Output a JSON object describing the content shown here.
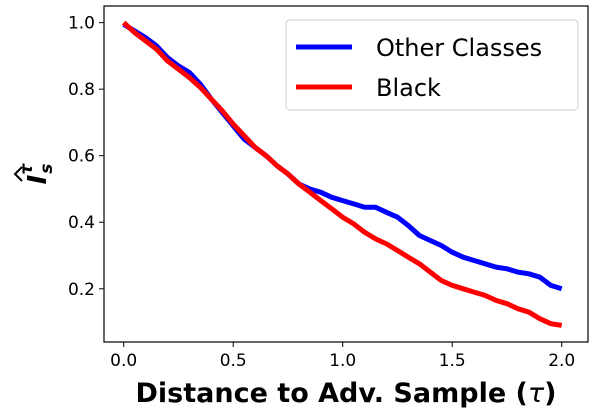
{
  "chart_data": {
    "type": "line",
    "xlabel_text": "Distance to Adv. Sample (",
    "xlabel_tau": "τ",
    "xlabel_close": ")",
    "ylabel": {
      "base": "I",
      "superscript": "τ",
      "subscript": "s"
    },
    "xlim": [
      -0.09,
      2.12
    ],
    "ylim": [
      0.04,
      1.05
    ],
    "x_ticks": [
      0.0,
      0.5,
      1.0,
      1.5,
      2.0
    ],
    "x_tick_labels": [
      "0.0",
      "0.5",
      "1.0",
      "1.5",
      "2.0"
    ],
    "y_ticks": [
      0.2,
      0.4,
      0.6,
      0.8,
      1.0
    ],
    "y_tick_labels": [
      "0.2",
      "0.4",
      "0.6",
      "0.8",
      "1.0"
    ],
    "grid": false,
    "legend_position": "top-right",
    "series": [
      {
        "name": "Other Classes",
        "color": "#0000ff",
        "points": [
          [
            0.0,
            0.995
          ],
          [
            0.05,
            0.975
          ],
          [
            0.1,
            0.955
          ],
          [
            0.15,
            0.93
          ],
          [
            0.2,
            0.895
          ],
          [
            0.25,
            0.87
          ],
          [
            0.3,
            0.85
          ],
          [
            0.35,
            0.815
          ],
          [
            0.4,
            0.77
          ],
          [
            0.45,
            0.73
          ],
          [
            0.5,
            0.69
          ],
          [
            0.55,
            0.65
          ],
          [
            0.6,
            0.625
          ],
          [
            0.65,
            0.6
          ],
          [
            0.7,
            0.57
          ],
          [
            0.75,
            0.545
          ],
          [
            0.8,
            0.515
          ],
          [
            0.85,
            0.5
          ],
          [
            0.9,
            0.49
          ],
          [
            0.95,
            0.475
          ],
          [
            1.0,
            0.465
          ],
          [
            1.05,
            0.455
          ],
          [
            1.1,
            0.445
          ],
          [
            1.15,
            0.445
          ],
          [
            1.2,
            0.43
          ],
          [
            1.25,
            0.415
          ],
          [
            1.3,
            0.39
          ],
          [
            1.35,
            0.36
          ],
          [
            1.4,
            0.345
          ],
          [
            1.45,
            0.33
          ],
          [
            1.5,
            0.31
          ],
          [
            1.55,
            0.295
          ],
          [
            1.6,
            0.285
          ],
          [
            1.65,
            0.275
          ],
          [
            1.7,
            0.265
          ],
          [
            1.75,
            0.26
          ],
          [
            1.8,
            0.25
          ],
          [
            1.85,
            0.245
          ],
          [
            1.9,
            0.235
          ],
          [
            1.95,
            0.21
          ],
          [
            2.0,
            0.2
          ]
        ]
      },
      {
        "name": "Black",
        "color": "#ff0000",
        "points": [
          [
            0.0,
            1.0
          ],
          [
            0.05,
            0.97
          ],
          [
            0.1,
            0.945
          ],
          [
            0.15,
            0.92
          ],
          [
            0.2,
            0.885
          ],
          [
            0.25,
            0.86
          ],
          [
            0.3,
            0.835
          ],
          [
            0.35,
            0.805
          ],
          [
            0.4,
            0.77
          ],
          [
            0.45,
            0.735
          ],
          [
            0.5,
            0.695
          ],
          [
            0.55,
            0.66
          ],
          [
            0.6,
            0.625
          ],
          [
            0.65,
            0.6
          ],
          [
            0.7,
            0.57
          ],
          [
            0.75,
            0.545
          ],
          [
            0.8,
            0.515
          ],
          [
            0.85,
            0.49
          ],
          [
            0.9,
            0.465
          ],
          [
            0.95,
            0.44
          ],
          [
            1.0,
            0.415
          ],
          [
            1.05,
            0.395
          ],
          [
            1.1,
            0.37
          ],
          [
            1.15,
            0.35
          ],
          [
            1.2,
            0.335
          ],
          [
            1.25,
            0.315
          ],
          [
            1.3,
            0.295
          ],
          [
            1.35,
            0.275
          ],
          [
            1.4,
            0.25
          ],
          [
            1.45,
            0.225
          ],
          [
            1.5,
            0.21
          ],
          [
            1.55,
            0.2
          ],
          [
            1.6,
            0.19
          ],
          [
            1.65,
            0.18
          ],
          [
            1.7,
            0.165
          ],
          [
            1.75,
            0.155
          ],
          [
            1.8,
            0.14
          ],
          [
            1.85,
            0.13
          ],
          [
            1.9,
            0.11
          ],
          [
            1.95,
            0.095
          ],
          [
            2.0,
            0.09
          ]
        ]
      }
    ]
  }
}
